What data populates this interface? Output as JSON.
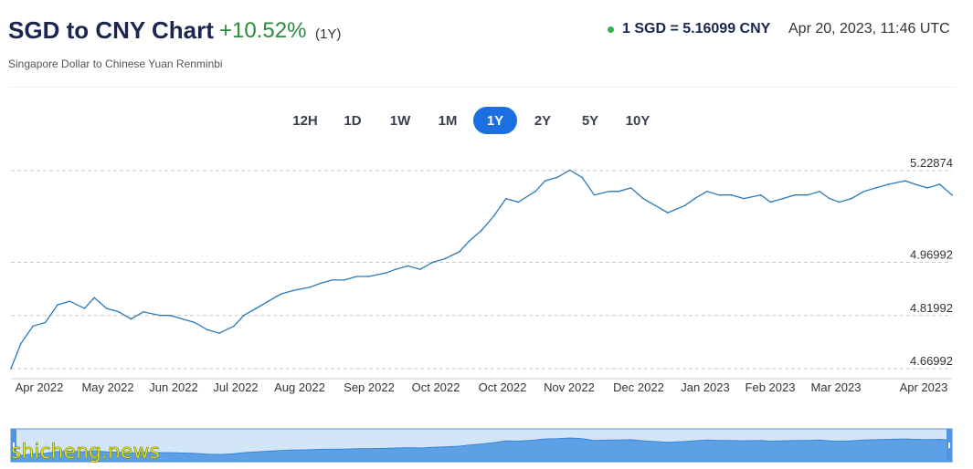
{
  "header": {
    "title": "SGD to CNY Chart",
    "change": "+10.52%",
    "change_period": "(1Y)",
    "subtitle": "Singapore Dollar to Chinese Yuan Renminbi",
    "rate": "1 SGD = 5.16099 CNY",
    "timestamp": "Apr 20, 2023, 11:46 UTC"
  },
  "ranges": [
    {
      "label": "12H",
      "active": false
    },
    {
      "label": "1D",
      "active": false
    },
    {
      "label": "1W",
      "active": false
    },
    {
      "label": "1M",
      "active": false
    },
    {
      "label": "1Y",
      "active": true
    },
    {
      "label": "2Y",
      "active": false
    },
    {
      "label": "5Y",
      "active": false
    },
    {
      "label": "10Y",
      "active": false
    }
  ],
  "colors": {
    "line": "#2a7ab8",
    "navigator_fill": "#5ea0e6",
    "navigator_bg": "#d3e6f8",
    "accent": "#1b6fe0",
    "positive": "#2e8b3d"
  },
  "watermark": "shicheng.news",
  "chart_data": {
    "type": "line",
    "title": "SGD to CNY",
    "x": [
      "2022-04-01",
      "2022-04-05",
      "2022-04-10",
      "2022-04-15",
      "2022-04-20",
      "2022-04-25",
      "2022-05-01",
      "2022-05-05",
      "2022-05-10",
      "2022-05-15",
      "2022-05-20",
      "2022-05-25",
      "2022-06-01",
      "2022-06-05",
      "2022-06-10",
      "2022-06-15",
      "2022-06-20",
      "2022-06-25",
      "2022-07-01",
      "2022-07-05",
      "2022-07-10",
      "2022-07-15",
      "2022-07-20",
      "2022-07-25",
      "2022-08-01",
      "2022-08-05",
      "2022-08-10",
      "2022-08-15",
      "2022-08-20",
      "2022-08-25",
      "2022-09-01",
      "2022-09-05",
      "2022-09-10",
      "2022-09-15",
      "2022-09-20",
      "2022-09-25",
      "2022-10-01",
      "2022-10-05",
      "2022-10-10",
      "2022-10-15",
      "2022-10-20",
      "2022-10-25",
      "2022-11-01",
      "2022-11-05",
      "2022-11-10",
      "2022-11-15",
      "2022-11-20",
      "2022-11-25",
      "2022-12-01",
      "2022-12-05",
      "2022-12-10",
      "2022-12-15",
      "2022-12-20",
      "2022-12-25",
      "2023-01-01",
      "2023-01-05",
      "2023-01-10",
      "2023-01-15",
      "2023-01-20",
      "2023-01-25",
      "2023-02-01",
      "2023-02-05",
      "2023-02-10",
      "2023-02-15",
      "2023-02-20",
      "2023-02-25",
      "2023-03-01",
      "2023-03-05",
      "2023-03-10",
      "2023-03-15",
      "2023-03-20",
      "2023-03-25",
      "2023-04-01",
      "2023-04-05",
      "2023-04-10",
      "2023-04-15",
      "2023-04-20"
    ],
    "values": [
      4.67,
      4.74,
      4.79,
      4.8,
      4.85,
      4.86,
      4.84,
      4.87,
      4.84,
      4.83,
      4.81,
      4.83,
      4.82,
      4.82,
      4.81,
      4.8,
      4.78,
      4.77,
      4.79,
      4.82,
      4.84,
      4.86,
      4.88,
      4.89,
      4.9,
      4.91,
      4.92,
      4.92,
      4.93,
      4.93,
      4.94,
      4.95,
      4.96,
      4.95,
      4.97,
      4.98,
      5.0,
      5.03,
      5.06,
      5.1,
      5.15,
      5.14,
      5.17,
      5.2,
      5.21,
      5.23,
      5.21,
      5.16,
      5.17,
      5.17,
      5.18,
      5.15,
      5.13,
      5.11,
      5.13,
      5.15,
      5.17,
      5.16,
      5.16,
      5.15,
      5.16,
      5.14,
      5.15,
      5.16,
      5.16,
      5.17,
      5.15,
      5.14,
      5.15,
      5.17,
      5.18,
      5.19,
      5.2,
      5.19,
      5.18,
      5.19,
      5.16
    ],
    "x_ticks": [
      "Apr 2022",
      "May 2022",
      "Jun 2022",
      "Jul 2022",
      "Aug 2022",
      "Sep 2022",
      "Oct 2022",
      "Oct 2022",
      "Nov 2022",
      "Dec 2022",
      "Jan 2023",
      "Feb 2023",
      "Mar 2023",
      "Apr 2023"
    ],
    "y_ticks": [
      "5.22874",
      "4.96992",
      "4.81992",
      "4.66992"
    ],
    "y_tick_values": [
      5.22874,
      4.96992,
      4.81992,
      4.66992
    ],
    "ylim": [
      4.66992,
      5.22874
    ],
    "grid": "horizontal-dashed",
    "legend": "none"
  }
}
